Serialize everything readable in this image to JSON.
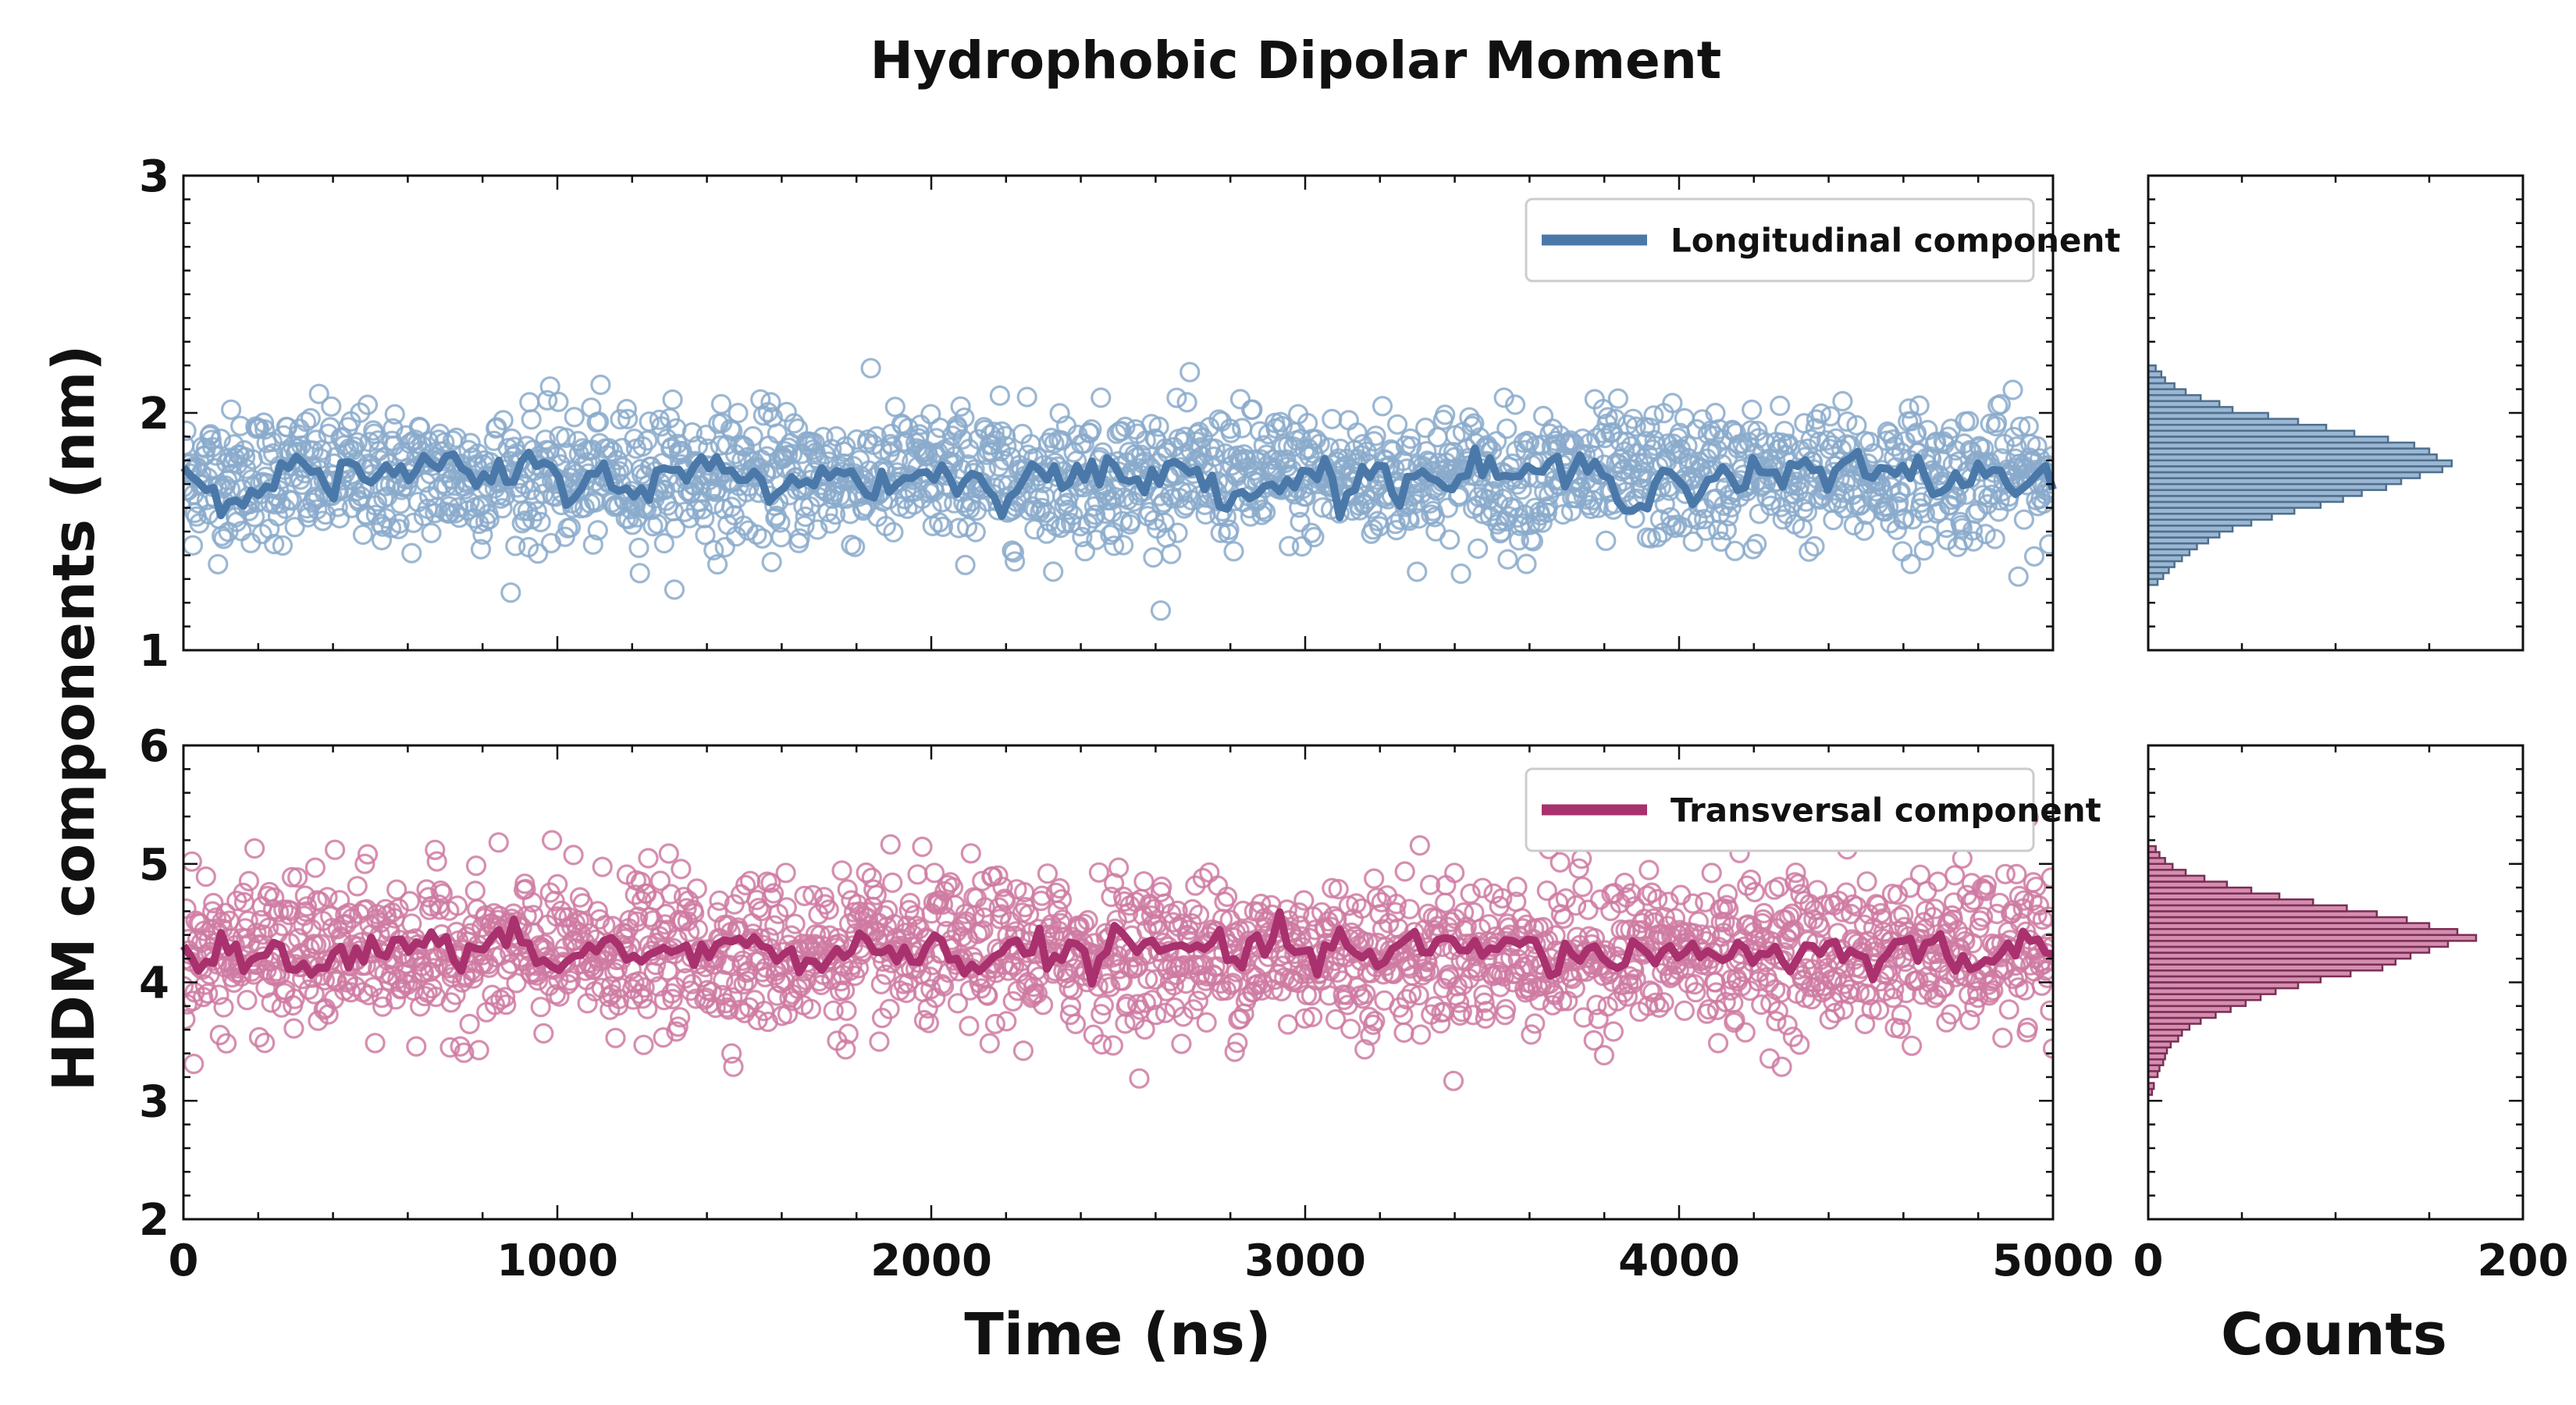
{
  "chart_data": {
    "title": "Hydrophobic Dipolar Moment",
    "ylabel": "HDM components (nm)",
    "xlabel": "Time (ns)",
    "hist_xlabel": "Counts",
    "type": "scatter",
    "grid": false,
    "legend_placement": "top-right",
    "x_range": [
      0,
      5000
    ],
    "x_ticks": [
      0,
      1000,
      2000,
      3000,
      4000,
      5000
    ],
    "hist_x_range": [
      0,
      200
    ],
    "hist_x_ticks": [
      0,
      200
    ],
    "panels": [
      {
        "series_name": "Longitudinal component",
        "color": "#4a78a8",
        "marker_color": "#8aaacb",
        "hist_color": "#4f6f8c",
        "ylim": [
          1,
          3
        ],
        "y_ticks": [
          1,
          2,
          3
        ],
        "mean": 1.73,
        "scatter_sd": 0.14,
        "running_average_sd": 0.045,
        "histogram": {
          "bin_width": 0.025,
          "bins": [
            [
              1.275,
              5
            ],
            [
              1.3,
              8
            ],
            [
              1.325,
              11
            ],
            [
              1.35,
              14
            ],
            [
              1.375,
              18
            ],
            [
              1.4,
              22
            ],
            [
              1.425,
              26
            ],
            [
              1.45,
              32
            ],
            [
              1.475,
              38
            ],
            [
              1.5,
              45
            ],
            [
              1.525,
              55
            ],
            [
              1.55,
              66
            ],
            [
              1.575,
              78
            ],
            [
              1.6,
              92
            ],
            [
              1.625,
              104
            ],
            [
              1.65,
              114
            ],
            [
              1.675,
              127
            ],
            [
              1.7,
              135
            ],
            [
              1.725,
              145
            ],
            [
              1.75,
              157
            ],
            [
              1.775,
              162
            ],
            [
              1.8,
              154
            ],
            [
              1.825,
              150
            ],
            [
              1.85,
              142
            ],
            [
              1.875,
              128
            ],
            [
              1.9,
              110
            ],
            [
              1.925,
              95
            ],
            [
              1.95,
              80
            ],
            [
              1.975,
              64
            ],
            [
              2.0,
              45
            ],
            [
              2.025,
              38
            ],
            [
              2.05,
              28
            ],
            [
              2.075,
              20
            ],
            [
              2.1,
              14
            ],
            [
              2.125,
              9
            ],
            [
              2.15,
              7
            ],
            [
              2.175,
              4
            ]
          ]
        }
      },
      {
        "series_name": "Transversal component",
        "color": "#a8316e",
        "marker_color": "#cf7aa2",
        "hist_color": "#7a2f55",
        "ylim": [
          2,
          6
        ],
        "y_ticks": [
          2,
          3,
          4,
          5,
          6
        ],
        "mean": 4.25,
        "scatter_sd": 0.32,
        "running_average_sd": 0.09,
        "histogram": {
          "bin_width": 0.05,
          "bins": [
            [
              3.05,
              2
            ],
            [
              3.1,
              3
            ],
            [
              3.2,
              5
            ],
            [
              3.25,
              6
            ],
            [
              3.3,
              8
            ],
            [
              3.35,
              9
            ],
            [
              3.4,
              10
            ],
            [
              3.45,
              12
            ],
            [
              3.5,
              16
            ],
            [
              3.55,
              18
            ],
            [
              3.6,
              22
            ],
            [
              3.65,
              28
            ],
            [
              3.7,
              36
            ],
            [
              3.75,
              44
            ],
            [
              3.8,
              52
            ],
            [
              3.85,
              60
            ],
            [
              3.9,
              68
            ],
            [
              3.95,
              80
            ],
            [
              4.0,
              92
            ],
            [
              4.05,
              108
            ],
            [
              4.1,
              125
            ],
            [
              4.15,
              132
            ],
            [
              4.2,
              140
            ],
            [
              4.25,
              150
            ],
            [
              4.3,
              160
            ],
            [
              4.35,
              175
            ],
            [
              4.4,
              165
            ],
            [
              4.45,
              150
            ],
            [
              4.5,
              138
            ],
            [
              4.55,
              122
            ],
            [
              4.6,
              106
            ],
            [
              4.65,
              88
            ],
            [
              4.7,
              70
            ],
            [
              4.75,
              55
            ],
            [
              4.8,
              42
            ],
            [
              4.85,
              30
            ],
            [
              4.9,
              20
            ],
            [
              4.95,
              13
            ],
            [
              5.0,
              9
            ],
            [
              5.05,
              6
            ],
            [
              5.1,
              4
            ]
          ]
        }
      }
    ]
  }
}
